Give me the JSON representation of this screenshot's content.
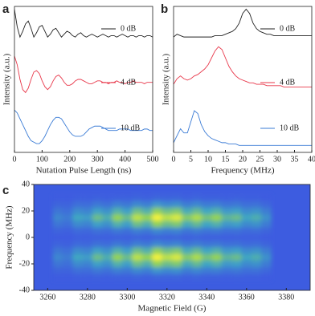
{
  "chart_data": [
    {
      "type": "line",
      "panel_label": "a",
      "xlabel": "Nutation Pulse Length (ns)",
      "ylabel": "Intensity (a.u.)",
      "x": [
        0,
        10,
        20,
        30,
        40,
        50,
        60,
        70,
        80,
        90,
        100,
        110,
        120,
        130,
        140,
        150,
        160,
        170,
        180,
        190,
        200,
        210,
        220,
        230,
        240,
        250,
        260,
        270,
        280,
        290,
        300,
        310,
        320,
        330,
        340,
        350,
        360,
        370,
        380,
        390,
        400,
        410,
        420,
        430,
        440,
        450,
        460,
        470,
        480,
        490,
        500
      ],
      "xlim": [
        0,
        500
      ],
      "xticks": [
        0,
        100,
        200,
        300,
        400,
        500
      ],
      "ylim": [
        0,
        10
      ],
      "series": [
        {
          "name": "0 dB",
          "color": "#222222",
          "values": [
            9.8,
            8.6,
            7.9,
            8.3,
            8.8,
            9.0,
            8.5,
            7.9,
            8.2,
            8.6,
            8.7,
            8.3,
            7.9,
            8.1,
            8.4,
            8.5,
            8.2,
            7.9,
            8.1,
            8.3,
            8.2,
            8.0,
            7.9,
            8.1,
            8.2,
            8.0,
            7.9,
            8.0,
            8.1,
            8.0,
            7.9,
            8.0,
            8.1,
            8.0,
            7.9,
            8.0,
            8.0,
            7.9,
            8.0,
            8.1,
            8.0,
            7.9,
            8.0,
            8.0,
            7.9,
            8.0,
            8.0,
            7.9,
            8.0,
            8.0,
            7.9
          ]
        },
        {
          "name": "4 dB",
          "color": "#e8374a",
          "values": [
            6.6,
            6.0,
            5.0,
            4.3,
            4.1,
            4.4,
            5.0,
            5.5,
            5.6,
            5.4,
            4.9,
            4.5,
            4.3,
            4.5,
            4.9,
            5.2,
            5.3,
            5.1,
            4.8,
            4.6,
            4.6,
            4.7,
            4.9,
            5.0,
            5.0,
            4.9,
            4.8,
            4.7,
            4.7,
            4.8,
            4.9,
            4.9,
            4.8,
            4.8,
            4.7,
            4.8,
            4.8,
            4.9,
            4.8,
            4.8,
            4.7,
            4.8,
            4.8,
            4.9,
            4.8,
            4.8,
            4.8,
            4.7,
            4.8,
            4.8,
            4.8
          ]
        },
        {
          "name": "10 dB",
          "color": "#3a7bd5",
          "values": [
            2.9,
            2.7,
            2.3,
            1.9,
            1.5,
            1.1,
            0.8,
            0.7,
            0.6,
            0.6,
            0.8,
            1.1,
            1.5,
            1.9,
            2.2,
            2.4,
            2.4,
            2.3,
            2.0,
            1.7,
            1.4,
            1.2,
            1.1,
            1.1,
            1.1,
            1.2,
            1.4,
            1.6,
            1.7,
            1.8,
            1.8,
            1.8,
            1.7,
            1.6,
            1.5,
            1.5,
            1.5,
            1.5,
            1.6,
            1.6,
            1.6,
            1.6,
            1.5,
            1.5,
            1.5,
            1.5,
            1.5,
            1.6,
            1.6,
            1.5,
            1.5
          ]
        }
      ]
    },
    {
      "type": "line",
      "panel_label": "b",
      "xlabel": "Frequency (MHz)",
      "ylabel": "Intensity (a.u.)",
      "x": [
        0,
        1,
        2,
        3,
        4,
        5,
        6,
        7,
        8,
        9,
        10,
        11,
        12,
        13,
        14,
        15,
        16,
        17,
        18,
        19,
        20,
        21,
        22,
        23,
        24,
        25,
        26,
        27,
        28,
        29,
        30,
        31,
        32,
        33,
        34,
        35,
        36,
        37,
        38,
        39,
        40
      ],
      "xlim": [
        0,
        40
      ],
      "xticks": [
        0,
        5,
        10,
        15,
        20,
        25,
        30,
        35,
        40
      ],
      "ylim": [
        0,
        10.5
      ],
      "series": [
        {
          "name": "0 dB",
          "color": "#222222",
          "values": [
            8.3,
            8.5,
            8.4,
            8.3,
            8.3,
            8.3,
            8.3,
            8.3,
            8.3,
            8.3,
            8.3,
            8.3,
            8.4,
            8.4,
            8.4,
            8.5,
            8.6,
            8.7,
            8.9,
            9.3,
            10.0,
            10.3,
            10.0,
            9.3,
            8.9,
            8.7,
            8.6,
            8.5,
            8.5,
            8.4,
            8.4,
            8.4,
            8.4,
            8.4,
            8.4,
            8.4,
            8.4,
            8.4,
            8.4,
            8.4,
            8.4
          ]
        },
        {
          "name": "4 dB",
          "color": "#e8374a",
          "values": [
            4.9,
            5.3,
            5.5,
            5.3,
            5.2,
            5.3,
            5.5,
            5.6,
            5.8,
            6.0,
            6.3,
            6.8,
            7.3,
            7.6,
            7.4,
            6.8,
            6.2,
            5.8,
            5.5,
            5.3,
            5.2,
            5.1,
            5.0,
            5.0,
            4.9,
            4.9,
            4.9,
            4.8,
            4.8,
            4.8,
            4.8,
            4.8,
            4.7,
            4.7,
            4.7,
            4.7,
            4.7,
            4.7,
            4.7,
            4.7,
            4.7
          ]
        },
        {
          "name": "10 dB",
          "color": "#3a7bd5",
          "values": [
            0.7,
            1.2,
            1.7,
            1.4,
            1.4,
            2.2,
            3.0,
            2.8,
            2.0,
            1.5,
            1.2,
            1.0,
            0.9,
            0.8,
            0.7,
            0.7,
            0.6,
            0.6,
            0.6,
            0.5,
            0.5,
            0.5,
            0.5,
            0.5,
            0.5,
            0.5,
            0.5,
            0.5,
            0.5,
            0.5,
            0.5,
            0.5,
            0.5,
            0.5,
            0.5,
            0.5,
            0.5,
            0.5,
            0.5,
            0.5,
            0.5
          ]
        }
      ]
    },
    {
      "type": "heatmap",
      "panel_label": "c",
      "xlabel": "Magnetic Field (G)",
      "ylabel": "Frequency (MHz)",
      "x": [
        3265,
        3270,
        3275,
        3280,
        3285,
        3290,
        3295,
        3300,
        3305,
        3310,
        3315,
        3320,
        3325,
        3330,
        3335,
        3340,
        3345,
        3350,
        3355,
        3360,
        3365,
        3370
      ],
      "y": [
        -30,
        -25,
        -20,
        -15,
        -10,
        -5,
        0,
        5,
        10,
        15,
        20,
        25,
        30
      ],
      "z": [
        [
          0.01,
          0.01,
          0.02,
          0.02,
          0.03,
          0.02,
          0.03,
          0.03,
          0.04,
          0.03,
          0.05,
          0.04,
          0.05,
          0.03,
          0.04,
          0.03,
          0.03,
          0.02,
          0.03,
          0.02,
          0.02,
          0.01
        ],
        [
          0.05,
          0.04,
          0.09,
          0.08,
          0.13,
          0.1,
          0.16,
          0.13,
          0.2,
          0.16,
          0.25,
          0.2,
          0.23,
          0.15,
          0.19,
          0.14,
          0.16,
          0.11,
          0.13,
          0.09,
          0.1,
          0.06
        ],
        [
          0.12,
          0.09,
          0.21,
          0.18,
          0.3,
          0.24,
          0.39,
          0.3,
          0.48,
          0.39,
          0.6,
          0.48,
          0.54,
          0.36,
          0.45,
          0.33,
          0.39,
          0.27,
          0.3,
          0.21,
          0.24,
          0.15
        ],
        [
          0.19,
          0.14,
          0.33,
          0.29,
          0.48,
          0.38,
          0.62,
          0.48,
          0.76,
          0.62,
          0.95,
          0.76,
          0.86,
          0.57,
          0.71,
          0.52,
          0.62,
          0.43,
          0.48,
          0.33,
          0.38,
          0.24
        ],
        [
          0.12,
          0.09,
          0.21,
          0.18,
          0.3,
          0.24,
          0.39,
          0.3,
          0.48,
          0.39,
          0.6,
          0.48,
          0.54,
          0.36,
          0.45,
          0.33,
          0.39,
          0.27,
          0.3,
          0.21,
          0.24,
          0.15
        ],
        [
          0.04,
          0.03,
          0.07,
          0.06,
          0.1,
          0.08,
          0.13,
          0.1,
          0.16,
          0.13,
          0.2,
          0.16,
          0.18,
          0.12,
          0.15,
          0.11,
          0.13,
          0.09,
          0.1,
          0.07,
          0.08,
          0.05
        ],
        [
          0.01,
          0.01,
          0.02,
          0.02,
          0.03,
          0.02,
          0.03,
          0.03,
          0.04,
          0.03,
          0.05,
          0.04,
          0.05,
          0.03,
          0.04,
          0.03,
          0.03,
          0.02,
          0.03,
          0.02,
          0.02,
          0.01
        ],
        [
          0.04,
          0.03,
          0.07,
          0.06,
          0.1,
          0.08,
          0.13,
          0.1,
          0.16,
          0.13,
          0.2,
          0.16,
          0.18,
          0.12,
          0.15,
          0.11,
          0.13,
          0.09,
          0.1,
          0.07,
          0.08,
          0.05
        ],
        [
          0.12,
          0.09,
          0.21,
          0.18,
          0.3,
          0.24,
          0.39,
          0.3,
          0.48,
          0.39,
          0.6,
          0.48,
          0.54,
          0.36,
          0.45,
          0.33,
          0.39,
          0.27,
          0.3,
          0.21,
          0.24,
          0.15
        ],
        [
          0.19,
          0.14,
          0.33,
          0.29,
          0.48,
          0.38,
          0.62,
          0.48,
          0.76,
          0.62,
          0.95,
          0.76,
          0.86,
          0.57,
          0.71,
          0.52,
          0.62,
          0.43,
          0.48,
          0.33,
          0.38,
          0.24
        ],
        [
          0.12,
          0.09,
          0.21,
          0.18,
          0.3,
          0.24,
          0.39,
          0.3,
          0.48,
          0.39,
          0.6,
          0.48,
          0.54,
          0.36,
          0.45,
          0.33,
          0.39,
          0.27,
          0.3,
          0.21,
          0.24,
          0.15
        ],
        [
          0.05,
          0.04,
          0.09,
          0.08,
          0.13,
          0.1,
          0.16,
          0.13,
          0.2,
          0.16,
          0.25,
          0.2,
          0.23,
          0.15,
          0.19,
          0.14,
          0.16,
          0.11,
          0.13,
          0.09,
          0.1,
          0.06
        ],
        [
          0.01,
          0.01,
          0.02,
          0.02,
          0.03,
          0.02,
          0.03,
          0.03,
          0.04,
          0.03,
          0.05,
          0.04,
          0.05,
          0.03,
          0.04,
          0.03,
          0.03,
          0.02,
          0.03,
          0.02,
          0.02,
          0.01
        ]
      ],
      "xlim": [
        3253,
        3392
      ],
      "xticks": [
        3260,
        3280,
        3300,
        3320,
        3340,
        3360,
        3380
      ],
      "ylim": [
        -40,
        40
      ],
      "yticks": [
        -40,
        -20,
        0,
        20,
        40
      ],
      "colorscale": [
        "#3d5ce0",
        "#3fa6c4",
        "#9ad84a",
        "#f4f43a"
      ]
    }
  ]
}
